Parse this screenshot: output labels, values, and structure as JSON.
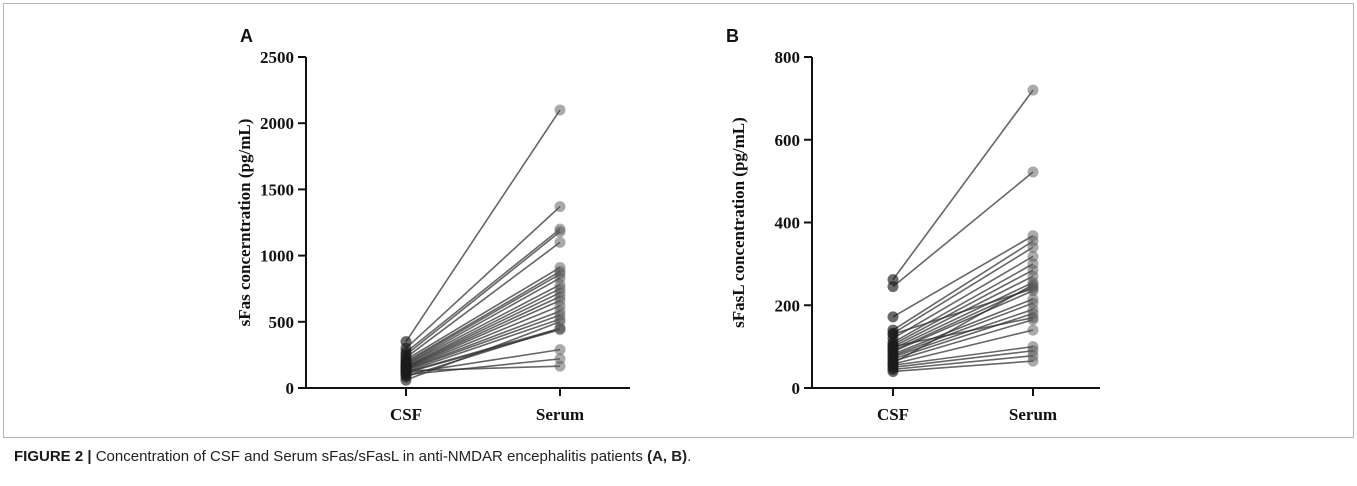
{
  "caption": {
    "label": "FIGURE 2 |",
    "text": " Concentration of CSF and Serum sFas/sFasL in anti-NMDAR encephalitis patients ",
    "panels": "(A, B)",
    "end": "."
  },
  "chart_data": [
    {
      "type": "line",
      "panel": "A",
      "categories": [
        "CSF",
        "Serum"
      ],
      "ylabel": "sFas concerntration (pg/mL)",
      "ylim": [
        0,
        2500
      ],
      "yticks": [
        0,
        500,
        1000,
        1500,
        2000,
        2500
      ],
      "pairs": [
        [
          350,
          2100
        ],
        [
          300,
          1370
        ],
        [
          270,
          1200
        ],
        [
          250,
          1180
        ],
        [
          230,
          1100
        ],
        [
          215,
          910
        ],
        [
          200,
          880
        ],
        [
          190,
          860
        ],
        [
          180,
          830
        ],
        [
          175,
          780
        ],
        [
          165,
          750
        ],
        [
          160,
          720
        ],
        [
          155,
          690
        ],
        [
          150,
          660
        ],
        [
          145,
          620
        ],
        [
          140,
          580
        ],
        [
          135,
          550
        ],
        [
          125,
          520
        ],
        [
          120,
          450
        ],
        [
          115,
          440
        ],
        [
          110,
          290
        ],
        [
          100,
          220
        ],
        [
          130,
          165
        ],
        [
          85,
          450
        ],
        [
          60,
          500
        ]
      ]
    },
    {
      "type": "line",
      "panel": "B",
      "categories": [
        "CSF",
        "Serum"
      ],
      "ylabel": "sFasL concentration (pg/mL)",
      "ylim": [
        0,
        800
      ],
      "yticks": [
        0,
        200,
        400,
        600,
        800
      ],
      "pairs": [
        [
          262,
          720
        ],
        [
          245,
          522
        ],
        [
          172,
          368
        ],
        [
          140,
          355
        ],
        [
          132,
          340
        ],
        [
          120,
          318
        ],
        [
          110,
          300
        ],
        [
          105,
          285
        ],
        [
          100,
          270
        ],
        [
          95,
          255
        ],
        [
          90,
          245
        ],
        [
          88,
          235
        ],
        [
          82,
          215
        ],
        [
          78,
          205
        ],
        [
          75,
          190
        ],
        [
          70,
          180
        ],
        [
          65,
          165
        ],
        [
          58,
          140
        ],
        [
          55,
          100
        ],
        [
          50,
          90
        ],
        [
          45,
          78
        ],
        [
          40,
          65
        ],
        [
          60,
          250
        ],
        [
          130,
          240
        ],
        [
          100,
          170
        ]
      ]
    }
  ]
}
